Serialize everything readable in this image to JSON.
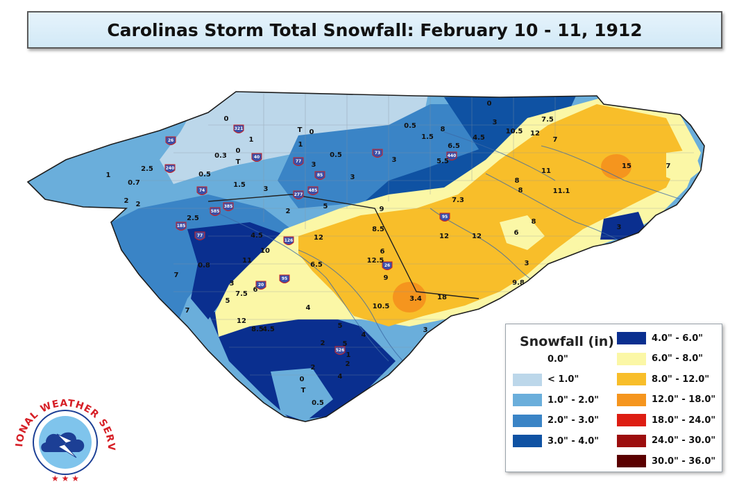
{
  "title": "Carolinas Storm Total Snowfall: February 10 - 11, 1912",
  "legend": {
    "title": "Snowfall (in)",
    "items": [
      {
        "label": "0.0\"",
        "color": "#ffffff"
      },
      {
        "label": "< 1.0\"",
        "color": "#bcd7ea"
      },
      {
        "label": "1.0\" - 2.0\"",
        "color": "#6aaedb"
      },
      {
        "label": "2.0\" - 3.0\"",
        "color": "#3a84c6"
      },
      {
        "label": "3.0\" - 4.0\"",
        "color": "#0f52a3"
      },
      {
        "label": "4.0\" - 6.0\"",
        "color": "#0a2f8f"
      },
      {
        "label": "6.0\" - 8.0\"",
        "color": "#fbf7a6"
      },
      {
        "label": "8.0\" - 12.0\"",
        "color": "#f8be2a"
      },
      {
        "label": "12.0\" - 18.0\"",
        "color": "#f5951e"
      },
      {
        "label": "18.0\" - 24.0\"",
        "color": "#dd1d12"
      },
      {
        "label": "24.0\" - 30.0\"",
        "color": "#9c0e0e"
      },
      {
        "label": "30.0\" - 36.0\"",
        "color": "#5a0000"
      }
    ]
  },
  "logo": {
    "text": "NATIONAL WEATHER SERVICE"
  },
  "highways": [
    "26",
    "321",
    "240",
    "74",
    "40",
    "77",
    "85",
    "73",
    "440",
    "277",
    "485",
    "95",
    "185",
    "585",
    "385",
    "77",
    "126",
    "20",
    "95",
    "26",
    "526"
  ],
  "observations": [
    "0",
    "T",
    "0",
    "1",
    "0.3",
    "0",
    "T",
    "1",
    "2.5",
    "0.7",
    "0.5",
    "1",
    "1.5",
    "3",
    "2",
    "2",
    "0.5",
    "1.5",
    "8",
    "0",
    "3",
    "10.5",
    "7.5",
    "12",
    "7",
    "6.5",
    "4.5",
    "5.5",
    "3",
    "0.5",
    "3",
    "3",
    "11",
    "8",
    "8",
    "11.1",
    "15",
    "7",
    "9",
    "7.3",
    "5",
    "2",
    "3",
    "4.5",
    "12",
    "12",
    "12",
    "8.5",
    "8",
    "6",
    "3",
    "9.8",
    "6",
    "12.5",
    "9",
    "11",
    "10",
    "6.5",
    "7",
    "0.8",
    "3",
    "6",
    "7.5",
    "5",
    "4",
    "7",
    "3.4",
    "18",
    "10.5",
    "12",
    "8.5",
    "4.5",
    "5",
    "4",
    "2",
    "5",
    "1",
    "3",
    "2",
    "4",
    "2",
    "2.5",
    "0",
    "0.5",
    "T"
  ]
}
